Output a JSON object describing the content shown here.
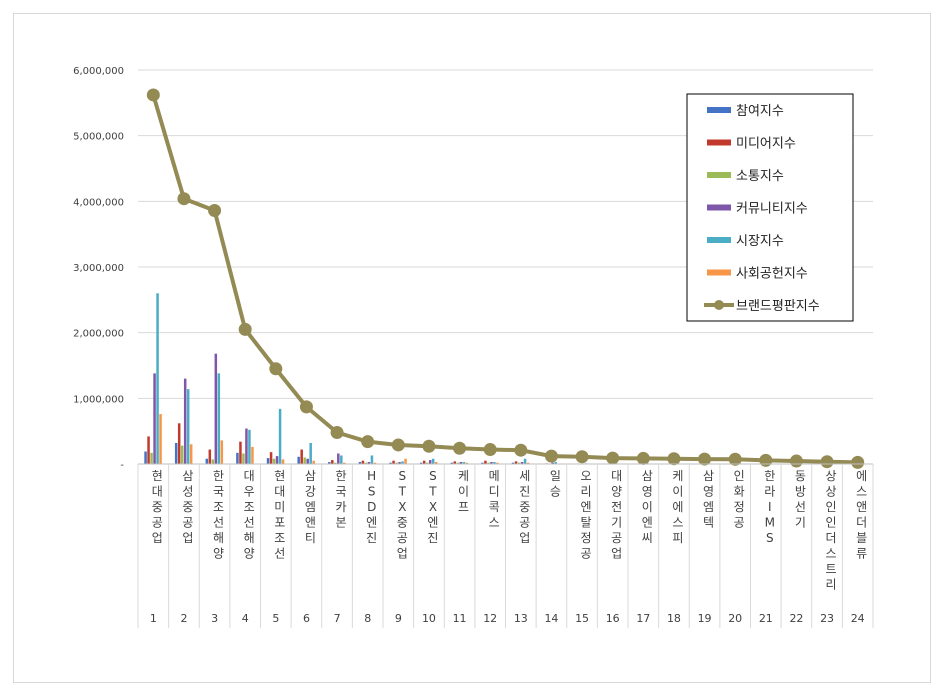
{
  "chart_data": {
    "type": "bar",
    "title": "",
    "xlabel": "",
    "ylabel": "",
    "ylim": [
      0,
      6000000
    ],
    "yticks": [
      "-",
      "1,000,000",
      "2,000,000",
      "3,000,000",
      "4,000,000",
      "5,000,000",
      "6,000,000"
    ],
    "grid": true,
    "legend_position": "top-right",
    "ranks": [
      "1",
      "2",
      "3",
      "4",
      "5",
      "6",
      "7",
      "8",
      "9",
      "10",
      "11",
      "12",
      "13",
      "14",
      "15",
      "16",
      "17",
      "18",
      "19",
      "20",
      "21",
      "22",
      "23",
      "24"
    ],
    "categories": [
      "현대중공업",
      "삼성중공업",
      "한국조선해양",
      "대우조선해양",
      "현대미포조선",
      "삼강엠앤티",
      "한국카본",
      "HSD엔진",
      "STX중공업",
      "STX엔진",
      "케이프",
      "메디콕스",
      "세진중공업",
      "일승",
      "오리엔탈정공",
      "대양전기공업",
      "삼영이엔씨",
      "케이에스피",
      "삼영엠텍",
      "인화정공",
      "한라IMS",
      "동방선기",
      "상상인인더스트리",
      "에스앤더블류"
    ],
    "series": [
      {
        "name": "참여지수",
        "color": "#4472c4",
        "type": "bar",
        "values": [
          190000,
          320000,
          80000,
          170000,
          90000,
          110000,
          30000,
          30000,
          20000,
          20000,
          20000,
          20000,
          20000,
          5000,
          5000,
          5000,
          5000,
          5000,
          5000,
          5000,
          5000,
          5000,
          5000,
          5000
        ]
      },
      {
        "name": "미디어지수",
        "color": "#c0392b",
        "type": "bar",
        "values": [
          420000,
          620000,
          220000,
          340000,
          180000,
          220000,
          60000,
          50000,
          50000,
          50000,
          40000,
          50000,
          40000,
          10000,
          8000,
          8000,
          8000,
          8000,
          8000,
          8000,
          8000,
          8000,
          8000,
          8000
        ]
      },
      {
        "name": "소통지수",
        "color": "#9bbb59",
        "type": "bar",
        "values": [
          170000,
          280000,
          70000,
          160000,
          80000,
          100000,
          20000,
          20000,
          20000,
          20000,
          20000,
          20000,
          20000,
          5000,
          5000,
          5000,
          5000,
          5000,
          5000,
          5000,
          5000,
          5000,
          5000,
          5000
        ]
      },
      {
        "name": "커뮤니티지수",
        "color": "#7e57a8",
        "type": "bar",
        "values": [
          1380000,
          1300000,
          1680000,
          540000,
          120000,
          80000,
          160000,
          30000,
          30000,
          60000,
          30000,
          30000,
          30000,
          20000,
          8000,
          8000,
          8000,
          8000,
          8000,
          8000,
          8000,
          8000,
          8000,
          8000
        ]
      },
      {
        "name": "시장지수",
        "color": "#4bacc6",
        "type": "bar",
        "values": [
          2600000,
          1140000,
          1380000,
          520000,
          840000,
          320000,
          130000,
          130000,
          40000,
          80000,
          30000,
          30000,
          80000,
          30000,
          10000,
          10000,
          10000,
          10000,
          10000,
          10000,
          10000,
          10000,
          10000,
          10000
        ]
      },
      {
        "name": "사회공헌지수",
        "color": "#f79646",
        "type": "bar",
        "values": [
          760000,
          300000,
          360000,
          260000,
          70000,
          50000,
          20000,
          20000,
          80000,
          30000,
          20000,
          20000,
          20000,
          5000,
          5000,
          5000,
          5000,
          5000,
          5000,
          5000,
          5000,
          5000,
          5000,
          5000
        ]
      },
      {
        "name": "브랜드평판지수",
        "color": "#948a54",
        "type": "line",
        "values": [
          5620000,
          4040000,
          3860000,
          2050000,
          1450000,
          870000,
          480000,
          340000,
          290000,
          270000,
          240000,
          220000,
          210000,
          120000,
          110000,
          90000,
          85000,
          80000,
          75000,
          72000,
          55000,
          45000,
          35000,
          25000
        ]
      }
    ]
  }
}
